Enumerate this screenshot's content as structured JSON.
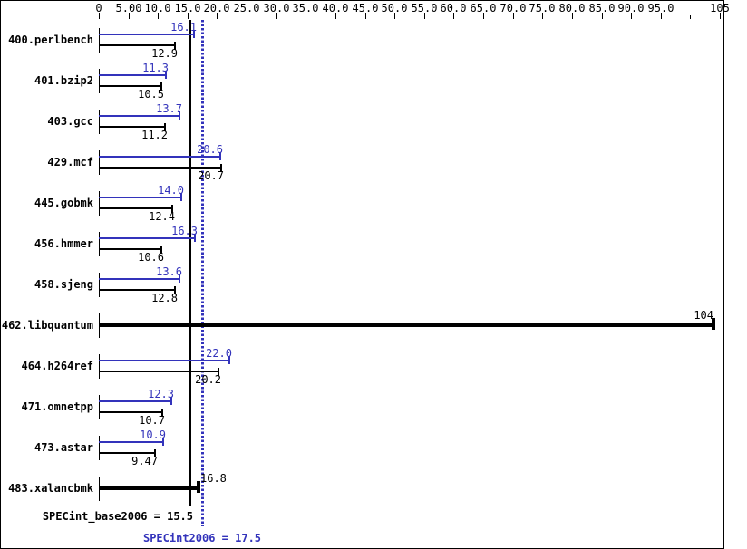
{
  "chart_data": {
    "type": "bar",
    "orientation": "horizontal",
    "title": "",
    "xlabel": "",
    "ylabel": "",
    "grid": false,
    "axis": {
      "min": 0,
      "max": 105,
      "tick_step": 5,
      "ticks": [
        {
          "value": 0,
          "label": "0"
        },
        {
          "value": 5,
          "label": "5.00"
        },
        {
          "value": 10,
          "label": "10.0"
        },
        {
          "value": 15,
          "label": "15.0"
        },
        {
          "value": 20,
          "label": "20.0"
        },
        {
          "value": 25,
          "label": "25.0"
        },
        {
          "value": 30,
          "label": "30.0"
        },
        {
          "value": 35,
          "label": "35.0"
        },
        {
          "value": 40,
          "label": "40.0"
        },
        {
          "value": 45,
          "label": "45.0"
        },
        {
          "value": 50,
          "label": "50.0"
        },
        {
          "value": 55,
          "label": "55.0"
        },
        {
          "value": 60,
          "label": "60.0"
        },
        {
          "value": 65,
          "label": "65.0"
        },
        {
          "value": 70,
          "label": "70.0"
        },
        {
          "value": 75,
          "label": "75.0"
        },
        {
          "value": 80,
          "label": "80.0"
        },
        {
          "value": 85,
          "label": "85.0"
        },
        {
          "value": 90,
          "label": "90.0"
        },
        {
          "value": 95,
          "label": "95.0"
        },
        {
          "value": 100,
          "label": ""
        },
        {
          "value": 105,
          "label": "105"
        }
      ]
    },
    "series_legend": {
      "peak": "SPECint2006 (peak, blue)",
      "base": "SPECint_base2006 (base, black)"
    },
    "benchmarks": [
      {
        "name": "400.perlbench",
        "peak": 16.1,
        "peak_label": "16.1",
        "base": 12.9,
        "base_label": "12.9"
      },
      {
        "name": "401.bzip2",
        "peak": 11.3,
        "peak_label": "11.3",
        "base": 10.5,
        "base_label": "10.5"
      },
      {
        "name": "403.gcc",
        "peak": 13.7,
        "peak_label": "13.7",
        "base": 11.2,
        "base_label": "11.2"
      },
      {
        "name": "429.mcf",
        "peak": 20.6,
        "peak_label": "20.6",
        "base": 20.7,
        "base_label": "20.7"
      },
      {
        "name": "445.gobmk",
        "peak": 14.0,
        "peak_label": "14.0",
        "base": 12.4,
        "base_label": "12.4"
      },
      {
        "name": "456.hmmer",
        "peak": 16.3,
        "peak_label": "16.3",
        "base": 10.6,
        "base_label": "10.6"
      },
      {
        "name": "458.sjeng",
        "peak": 13.6,
        "peak_label": "13.6",
        "base": 12.8,
        "base_label": "12.8"
      },
      {
        "name": "462.libquantum",
        "single": 104,
        "single_label": "104"
      },
      {
        "name": "464.h264ref",
        "peak": 22.0,
        "peak_label": "22.0",
        "base": 20.2,
        "base_label": "20.2"
      },
      {
        "name": "471.omnetpp",
        "peak": 12.3,
        "peak_label": "12.3",
        "base": 10.7,
        "base_label": "10.7"
      },
      {
        "name": "473.astar",
        "peak": 10.9,
        "peak_label": "10.9",
        "base": 9.47,
        "base_label": "9.47"
      },
      {
        "name": "483.xalancbmk",
        "single": 16.8,
        "single_label": "16.8"
      }
    ],
    "reference_lines": [
      {
        "name": "SPECint_base2006 mean",
        "value": 15.5,
        "style": "solid",
        "color": "#000000"
      },
      {
        "name": "SPECint2006 mean",
        "value": 17.5,
        "style": "dotted",
        "color": "#3333bb"
      }
    ],
    "means": {
      "base": {
        "label": "SPECint_base2006 = 15.5",
        "value": 15.5
      },
      "peak": {
        "label": "SPECint2006 = 17.5",
        "value": 17.5
      }
    }
  },
  "colors": {
    "peak": "#3333bb",
    "base": "#000000",
    "background": "#ffffff"
  }
}
